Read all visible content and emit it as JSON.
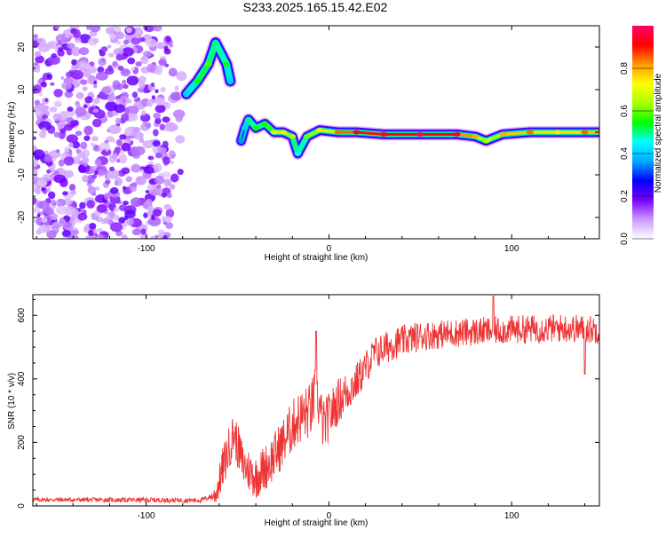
{
  "title": "S233.2025.165.15.42.E02",
  "chart_data": [
    {
      "type": "heatmap",
      "xlabel": "Height of straight line (km)",
      "ylabel": "Frequency (Hz)",
      "xlim": [
        -162,
        148
      ],
      "ylim": [
        -25,
        25
      ],
      "x_ticks": [
        -100,
        0,
        100
      ],
      "y_ticks": [
        -20,
        -10,
        0,
        10,
        20
      ],
      "colorbar": {
        "label": "Normalized spectral amplitude",
        "range": [
          0,
          1
        ],
        "ticks": [
          "0.0",
          "0.2",
          "0.4",
          "0.6",
          "0.8"
        ],
        "colors": [
          "#ffffff",
          "#cc99ff",
          "#7700ff",
          "#0000ff",
          "#00aaff",
          "#00ffff",
          "#00ff00",
          "#aaff00",
          "#ffff00",
          "#ff9900",
          "#ff0000",
          "#ff0066"
        ]
      },
      "noise_region": {
        "x": [
          -162,
          -78
        ],
        "y": [
          -25,
          25
        ],
        "amplitude": 0.2
      },
      "early_branch": [
        {
          "x": -78,
          "y": 9,
          "a": 0.35
        },
        {
          "x": -72,
          "y": 12,
          "a": 0.5
        },
        {
          "x": -66,
          "y": 16,
          "a": 0.55
        },
        {
          "x": -62,
          "y": 21,
          "a": 0.45
        },
        {
          "x": -56,
          "y": 16,
          "a": 0.5
        },
        {
          "x": -54,
          "y": 12,
          "a": 0.35
        }
      ],
      "ridge": [
        {
          "x": -48,
          "y": -2,
          "a": 0.3
        },
        {
          "x": -46,
          "y": 1,
          "a": 0.35
        },
        {
          "x": -44,
          "y": 3,
          "a": 0.45
        },
        {
          "x": -40,
          "y": 1,
          "a": 0.5
        },
        {
          "x": -35,
          "y": 2,
          "a": 0.5
        },
        {
          "x": -30,
          "y": 0,
          "a": 0.65
        },
        {
          "x": -25,
          "y": 0,
          "a": 0.7
        },
        {
          "x": -20,
          "y": -1,
          "a": 0.6
        },
        {
          "x": -17,
          "y": -5,
          "a": 0.4
        },
        {
          "x": -12,
          "y": -1,
          "a": 0.55
        },
        {
          "x": -5,
          "y": 0.5,
          "a": 0.7
        },
        {
          "x": 5,
          "y": 0,
          "a": 0.8
        },
        {
          "x": 15,
          "y": 0,
          "a": 0.9
        },
        {
          "x": 30,
          "y": -0.5,
          "a": 0.9
        },
        {
          "x": 50,
          "y": -0.5,
          "a": 0.95
        },
        {
          "x": 70,
          "y": -0.5,
          "a": 0.9
        },
        {
          "x": 80,
          "y": -1,
          "a": 0.75
        },
        {
          "x": 86,
          "y": -2,
          "a": 0.6
        },
        {
          "x": 95,
          "y": -0.5,
          "a": 0.75
        },
        {
          "x": 110,
          "y": 0,
          "a": 0.8
        },
        {
          "x": 125,
          "y": 0,
          "a": 0.7
        },
        {
          "x": 140,
          "y": 0,
          "a": 0.8
        },
        {
          "x": 147,
          "y": 0,
          "a": 0.75
        }
      ]
    },
    {
      "type": "line",
      "xlabel": "Height of straight line (km)",
      "ylabel": "SNR (10 * v/v)",
      "xlim": [
        -162,
        148
      ],
      "ylim": [
        0,
        665
      ],
      "x_ticks": [
        -100,
        0,
        100
      ],
      "y_ticks": [
        0,
        200,
        400,
        600
      ],
      "color": "#ee3333",
      "trend": [
        {
          "x": -162,
          "y": 20
        },
        {
          "x": -70,
          "y": 18
        },
        {
          "x": -62,
          "y": 35
        },
        {
          "x": -57,
          "y": 140
        },
        {
          "x": -52,
          "y": 230
        },
        {
          "x": -47,
          "y": 130
        },
        {
          "x": -40,
          "y": 90
        },
        {
          "x": -32,
          "y": 140
        },
        {
          "x": -25,
          "y": 200
        },
        {
          "x": -18,
          "y": 270
        },
        {
          "x": -10,
          "y": 300
        },
        {
          "x": -7,
          "y": 360
        },
        {
          "x": -3,
          "y": 250
        },
        {
          "x": 5,
          "y": 330
        },
        {
          "x": 15,
          "y": 390
        },
        {
          "x": 25,
          "y": 480
        },
        {
          "x": 35,
          "y": 510
        },
        {
          "x": 50,
          "y": 535
        },
        {
          "x": 70,
          "y": 545
        },
        {
          "x": 100,
          "y": 555
        },
        {
          "x": 130,
          "y": 560
        },
        {
          "x": 148,
          "y": 555
        }
      ],
      "noise_amplitude": [
        {
          "x": -162,
          "y": 7
        },
        {
          "x": -65,
          "y": 8
        },
        {
          "x": -58,
          "y": 70
        },
        {
          "x": -40,
          "y": 70
        },
        {
          "x": -10,
          "y": 90
        },
        {
          "x": 20,
          "y": 55
        },
        {
          "x": 60,
          "y": 45
        },
        {
          "x": 148,
          "y": 45
        }
      ],
      "spikes": [
        {
          "x": -7,
          "y": 550
        },
        {
          "x": 90,
          "y": 660
        },
        {
          "x": 140,
          "y": 415
        }
      ]
    }
  ]
}
